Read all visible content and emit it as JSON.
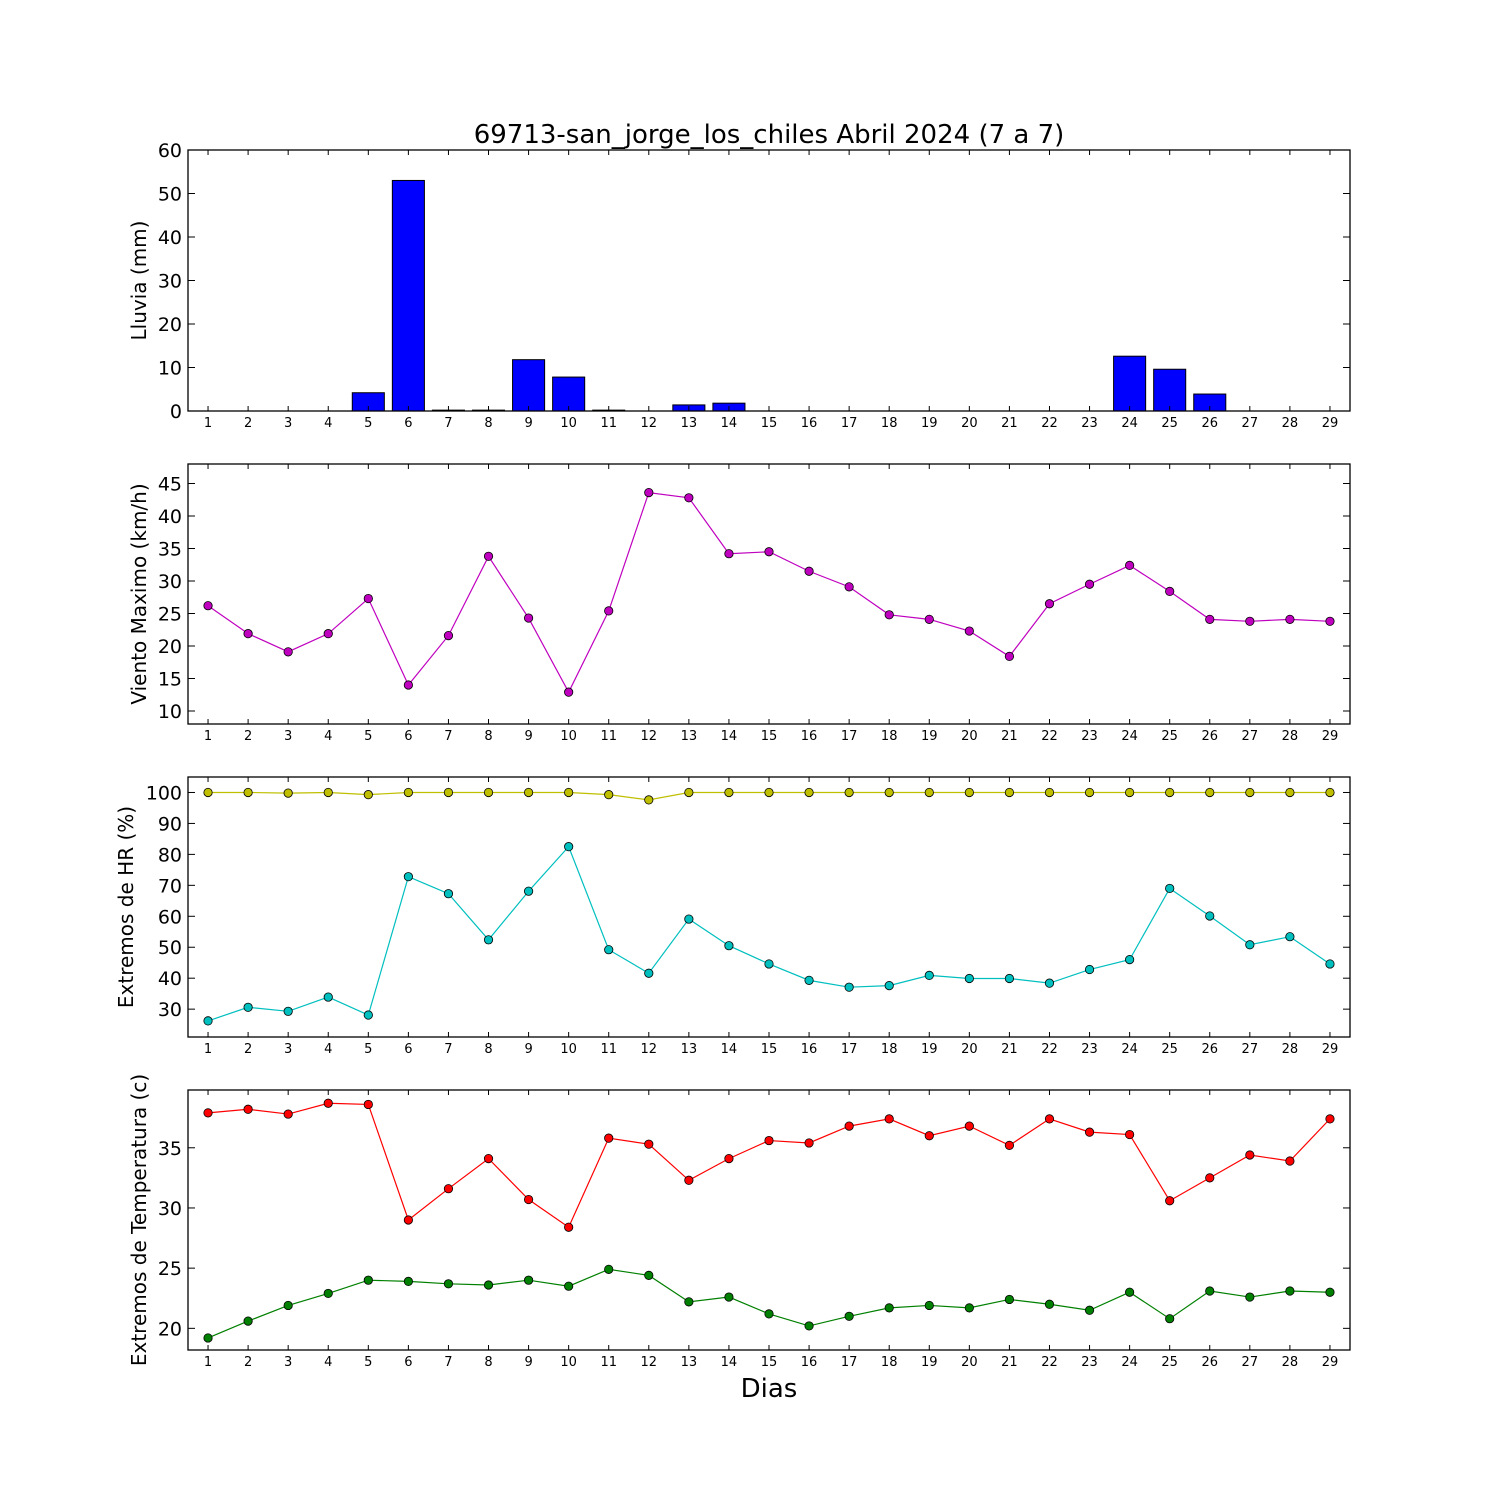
{
  "title": "69713-san_jorge_los_chiles Abril 2024  (7 a 7)",
  "xlabel": "Dias",
  "chart_data": [
    {
      "type": "bar",
      "ylabel": "Lluvia (mm)",
      "ylim": [
        0,
        60
      ],
      "yticks": [
        0,
        10,
        20,
        30,
        40,
        50,
        60
      ],
      "x": [
        1,
        2,
        3,
        4,
        5,
        6,
        7,
        8,
        9,
        10,
        11,
        12,
        13,
        14,
        15,
        16,
        17,
        18,
        19,
        20,
        21,
        22,
        23,
        24,
        25,
        26,
        27,
        28,
        29
      ],
      "series": [
        {
          "color": "#0000ff",
          "values": [
            0,
            0,
            0,
            0,
            4.2,
            53,
            0.2,
            0.2,
            11.8,
            7.8,
            0.2,
            0,
            1.4,
            1.8,
            0,
            0,
            0,
            0,
            0,
            0,
            0,
            0,
            0,
            12.6,
            9.6,
            3.9,
            0,
            0,
            0
          ]
        }
      ]
    },
    {
      "type": "line",
      "ylabel": "Viento Maximo (km/h)",
      "ylim": [
        8,
        48
      ],
      "yticks": [
        10,
        15,
        20,
        25,
        30,
        35,
        40,
        45
      ],
      "x": [
        1,
        2,
        3,
        4,
        5,
        6,
        7,
        8,
        9,
        10,
        11,
        12,
        13,
        14,
        15,
        16,
        17,
        18,
        19,
        20,
        21,
        22,
        23,
        24,
        25,
        26,
        27,
        28,
        29
      ],
      "series": [
        {
          "color": "#bf00bf",
          "values": [
            26.2,
            21.9,
            19.1,
            21.9,
            27.3,
            14.0,
            21.6,
            33.8,
            24.3,
            12.9,
            25.4,
            43.6,
            42.8,
            34.2,
            34.5,
            31.5,
            29.1,
            24.8,
            24.1,
            22.3,
            18.4,
            26.5,
            29.5,
            32.4,
            28.4,
            24.1,
            23.8,
            24.1,
            23.8
          ]
        }
      ]
    },
    {
      "type": "line",
      "ylabel": "Extremos de HR (%)",
      "ylim": [
        21,
        105
      ],
      "yticks": [
        30,
        40,
        50,
        60,
        70,
        80,
        90,
        100
      ],
      "x": [
        1,
        2,
        3,
        4,
        5,
        6,
        7,
        8,
        9,
        10,
        11,
        12,
        13,
        14,
        15,
        16,
        17,
        18,
        19,
        20,
        21,
        22,
        23,
        24,
        25,
        26,
        27,
        28,
        29
      ],
      "series": [
        {
          "color": "#bfbf00",
          "values": [
            100,
            100,
            99.8,
            100,
            99.3,
            100,
            100,
            100,
            100,
            100,
            99.3,
            97.6,
            100,
            100,
            100,
            100,
            100,
            100,
            100,
            100,
            100,
            100,
            100,
            100,
            100,
            100,
            100,
            100,
            100
          ]
        },
        {
          "color": "#00bfbf",
          "values": [
            26.2,
            30.6,
            29.3,
            33.9,
            28.1,
            72.8,
            67.3,
            52.4,
            68.1,
            82.5,
            49.2,
            41.6,
            59.1,
            50.5,
            44.6,
            39.3,
            37.1,
            37.6,
            40.9,
            39.9,
            39.9,
            38.4,
            42.8,
            46.0,
            69.0,
            60.1,
            50.8,
            53.4,
            44.6
          ]
        }
      ]
    },
    {
      "type": "line",
      "ylabel": "Extremos de Temperatura (c)",
      "ylim": [
        18.2,
        39.8
      ],
      "yticks": [
        20,
        25,
        30,
        35
      ],
      "x": [
        1,
        2,
        3,
        4,
        5,
        6,
        7,
        8,
        9,
        10,
        11,
        12,
        13,
        14,
        15,
        16,
        17,
        18,
        19,
        20,
        21,
        22,
        23,
        24,
        25,
        26,
        27,
        28,
        29
      ],
      "series": [
        {
          "color": "#ff0000",
          "values": [
            37.9,
            38.2,
            37.8,
            38.7,
            38.6,
            29.0,
            31.6,
            34.1,
            30.7,
            28.4,
            35.8,
            35.3,
            32.3,
            34.1,
            35.6,
            35.4,
            36.8,
            37.4,
            36.0,
            36.8,
            35.2,
            37.4,
            36.3,
            36.1,
            30.6,
            32.5,
            34.4,
            33.9,
            37.4
          ]
        },
        {
          "color": "#008000",
          "values": [
            19.2,
            20.6,
            21.9,
            22.9,
            24.0,
            23.9,
            23.7,
            23.6,
            24.0,
            23.5,
            24.9,
            24.4,
            22.2,
            22.6,
            21.2,
            20.2,
            21.0,
            21.7,
            21.9,
            21.7,
            22.4,
            22.0,
            21.5,
            23.0,
            20.8,
            23.1,
            22.6,
            23.1,
            23.0
          ]
        }
      ]
    }
  ]
}
